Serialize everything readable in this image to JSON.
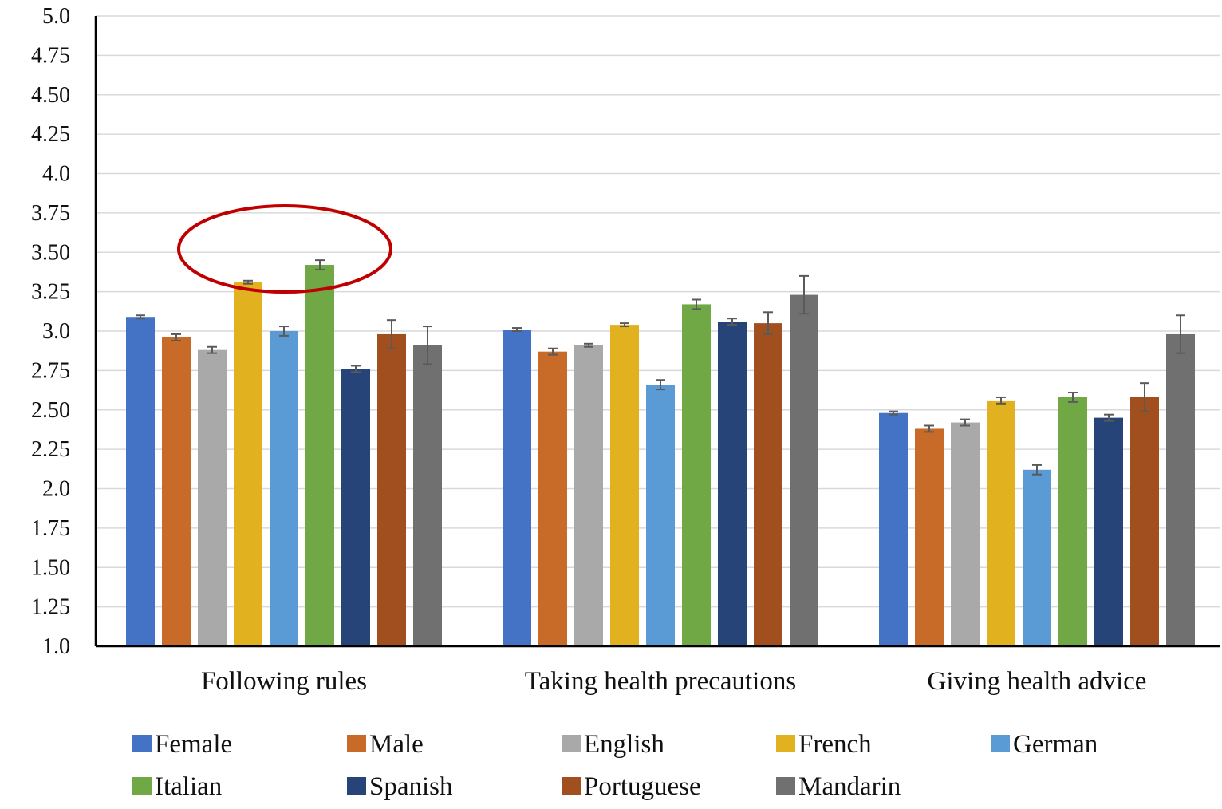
{
  "chart_data": {
    "type": "bar",
    "title": "",
    "xlabel": "",
    "ylabel": "",
    "ylim": [
      1.0,
      5.0
    ],
    "yticks": [
      "1.0",
      "1.25",
      "1.50",
      "1.75",
      "2.0",
      "2.25",
      "2.50",
      "2.75",
      "3.0",
      "3.25",
      "3.50",
      "3.75",
      "4.0",
      "4.25",
      "4.50",
      "4.75",
      "5.0"
    ],
    "grid": true,
    "legend_position": "bottom",
    "categories": [
      "Following rules",
      "Taking health precautions",
      "Giving health advice"
    ],
    "series": [
      {
        "name": "Female",
        "color": "#4472C4",
        "values": [
          3.09,
          3.01,
          2.48
        ],
        "errors": [
          0.01,
          0.01,
          0.01
        ]
      },
      {
        "name": "Male",
        "color": "#C86B28",
        "values": [
          2.96,
          2.87,
          2.38
        ],
        "errors": [
          0.02,
          0.02,
          0.02
        ]
      },
      {
        "name": "English",
        "color": "#A9A9A9",
        "values": [
          2.88,
          2.91,
          2.42
        ],
        "errors": [
          0.02,
          0.01,
          0.02
        ]
      },
      {
        "name": "French",
        "color": "#E1B11F",
        "values": [
          3.31,
          3.04,
          2.56
        ],
        "errors": [
          0.01,
          0.01,
          0.02
        ]
      },
      {
        "name": "German",
        "color": "#5B9BD5",
        "values": [
          3.0,
          2.66,
          2.12
        ],
        "errors": [
          0.03,
          0.03,
          0.03
        ]
      },
      {
        "name": "Italian",
        "color": "#70A845",
        "values": [
          3.42,
          3.17,
          2.58
        ],
        "errors": [
          0.03,
          0.03,
          0.03
        ]
      },
      {
        "name": "Spanish",
        "color": "#264478",
        "values": [
          2.76,
          3.06,
          2.45
        ],
        "errors": [
          0.02,
          0.02,
          0.02
        ]
      },
      {
        "name": "Portuguese",
        "color": "#A14F1E",
        "values": [
          2.98,
          3.05,
          2.58
        ],
        "errors": [
          0.09,
          0.07,
          0.09
        ]
      },
      {
        "name": "Mandarin",
        "color": "#707070",
        "values": [
          2.91,
          3.23,
          2.98
        ],
        "errors": [
          0.12,
          0.12,
          0.12
        ]
      }
    ],
    "annotation": {
      "shape": "ellipse",
      "color": "#C00000",
      "highlights": [
        "French",
        "Italian"
      ],
      "category": "Following rules"
    }
  }
}
